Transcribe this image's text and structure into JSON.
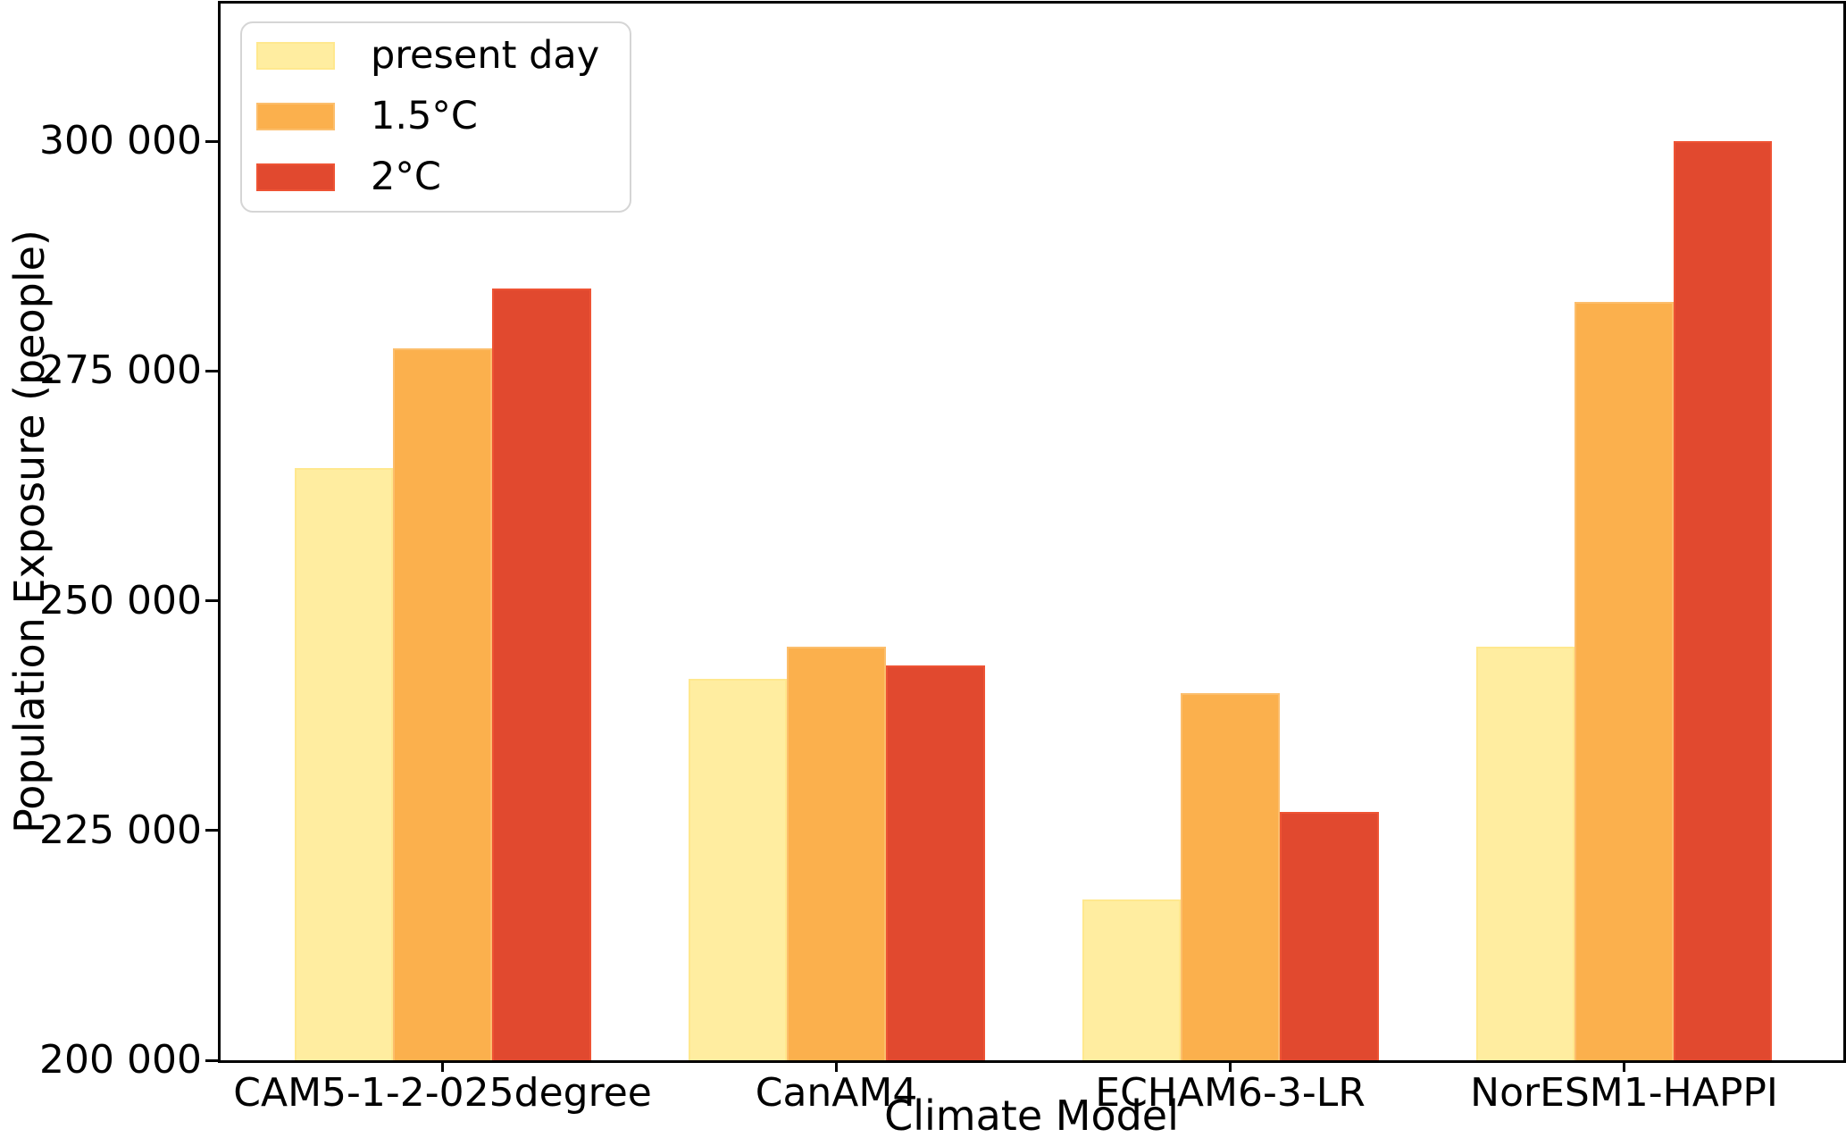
{
  "chart_data": {
    "type": "bar",
    "title": "",
    "xlabel": "Climate Model",
    "ylabel": "Population Exposure (people)",
    "categories": [
      "CAM5-1-2-025degree",
      "CanAM4",
      "ECHAM6-3-LR",
      "NorESM1-HAPPI"
    ],
    "series": [
      {
        "name": "present day",
        "color": "#FFEDA0",
        "edge_color": "#FFE88E",
        "values": [
          264500,
          241500,
          217500,
          245000
        ]
      },
      {
        "name": "1.5°C",
        "color": "#FBB04D",
        "edge_color": "#FCBE6C",
        "values": [
          277500,
          245000,
          240000,
          282500
        ]
      },
      {
        "name": "2°C",
        "color": "#E1492F",
        "edge_color": "#EE5334",
        "values": [
          284000,
          243000,
          227000,
          300000
        ]
      }
    ],
    "ylim": [
      200000,
      315000
    ],
    "yticks": [
      300000,
      275000,
      250000,
      225000,
      200000
    ],
    "ytick_labels": [
      "300 000",
      "275 000",
      "250 000",
      "225 000",
      "200 000"
    ],
    "legend_position": "upper left",
    "grid": false,
    "axis_color": "#000000"
  }
}
